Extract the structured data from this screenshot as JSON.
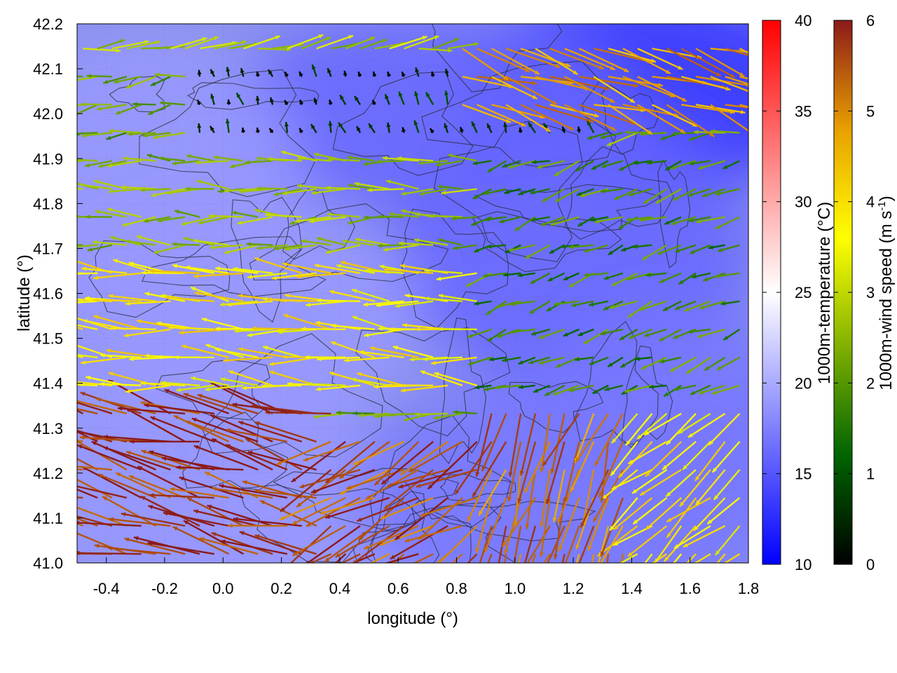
{
  "chart_data": {
    "type": "heatmap",
    "overlays": [
      "wind vector field",
      "terrain contour lines"
    ],
    "xlabel": "longitude (°)",
    "ylabel": "latitude (°)",
    "xlim": [
      -0.5,
      1.8
    ],
    "ylim": [
      41.0,
      42.2
    ],
    "xticks": [
      "-0.4",
      "-0.2",
      "0.0",
      "0.2",
      "0.4",
      "0.6",
      "0.8",
      "1.0",
      "1.2",
      "1.4",
      "1.6",
      "1.8"
    ],
    "yticks": [
      "41.0",
      "41.1",
      "41.2",
      "41.3",
      "41.4",
      "41.5",
      "41.6",
      "41.7",
      "41.8",
      "41.9",
      "42.0",
      "42.1",
      "42.2"
    ],
    "grid": true,
    "colorbars": [
      {
        "label": "1000m-temperature (°C)",
        "range": [
          10,
          40
        ],
        "ticks": [
          "10",
          "15",
          "20",
          "25",
          "30",
          "35",
          "40"
        ],
        "colors": [
          "#0000ff",
          "#ffffff",
          "#ff0000"
        ]
      },
      {
        "label_main": "1000m-wind speed (m s",
        "label_sup": "-1",
        "label_end": ")",
        "range": [
          0,
          6
        ],
        "ticks": [
          "0",
          "1",
          "2",
          "3",
          "4",
          "5",
          "6"
        ],
        "colors": [
          "#000000",
          "#006400",
          "#80b000",
          "#ffff00",
          "#e8a000",
          "#8b1a1a"
        ]
      }
    ],
    "temperature_field_approx": [
      {
        "region": "north-east",
        "value_c": 13
      },
      {
        "region": "north-central",
        "value_c": 16
      },
      {
        "region": "west",
        "value_c": 19
      },
      {
        "region": "south-west",
        "value_c": 19
      },
      {
        "region": "south-east",
        "value_c": 17
      }
    ],
    "wind_regions_approx": [
      {
        "lon": [
          -0.5,
          0.4
        ],
        "lat": [
          41.0,
          41.35
        ],
        "speed": 5.8,
        "dir_deg": 165
      },
      {
        "lon": [
          0.35,
          0.9
        ],
        "lat": [
          41.0,
          41.3
        ],
        "speed": 5.5,
        "dir_deg": 210
      },
      {
        "lon": [
          0.9,
          1.4
        ],
        "lat": [
          41.0,
          41.35
        ],
        "speed": 5.2,
        "dir_deg": 250
      },
      {
        "lon": [
          1.4,
          1.8
        ],
        "lat": [
          41.0,
          41.35
        ],
        "speed": 3.8,
        "dir_deg": 220
      },
      {
        "lon": [
          -0.5,
          0.9
        ],
        "lat": [
          41.35,
          41.65
        ],
        "speed": 3.8,
        "dir_deg": 175
      },
      {
        "lon": [
          -0.5,
          0.9
        ],
        "lat": [
          41.65,
          41.95
        ],
        "speed": 2.5,
        "dir_deg": 180
      },
      {
        "lon": [
          0.9,
          1.8
        ],
        "lat": [
          41.35,
          41.9
        ],
        "speed": 1.8,
        "dir_deg": 200
      },
      {
        "lon": [
          -0.1,
          1.3
        ],
        "lat": [
          41.9,
          42.15
        ],
        "speed": 0.4,
        "dir_deg": 110
      },
      {
        "lon": [
          0.8,
          1.8
        ],
        "lat": [
          42.0,
          42.2
        ],
        "speed": 4.8,
        "dir_deg": 340
      },
      {
        "lon": [
          -0.5,
          0.8
        ],
        "lat": [
          42.1,
          42.2
        ],
        "speed": 2.8,
        "dir_deg": 10
      }
    ]
  },
  "colors": {
    "temp_low": "#0000ff",
    "temp_mid": "#ffffff",
    "temp_high": "#ff0000",
    "contour": "#2a2a3a"
  }
}
